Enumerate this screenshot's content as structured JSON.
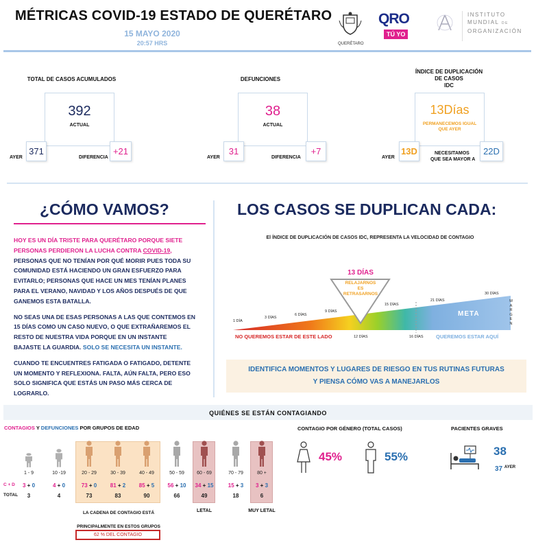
{
  "header": {
    "title": "MÉTRICAS COVID-19 ESTADO DE QUERÉTARO",
    "date": "15 MAYO 2020",
    "time": "20:57 HRS",
    "logo_queretaro": "QUERÉTARO",
    "logo_qro": "QRO",
    "logo_tuyo": "TÚ YO",
    "institute_line1": "INSTITUTO",
    "institute_line2": "MUNDIAL",
    "institute_de": "DE",
    "institute_line3": "ORGANIZACIÓN"
  },
  "metrics": {
    "casos": {
      "label": "TOTAL DE CASOS ACUMULADOS",
      "actual": "392",
      "actual_label": "ACTUAL",
      "ayer": "371",
      "ayer_label": "AYER",
      "diferencia": "+21",
      "diferencia_label": "DIFERENCIA"
    },
    "defunciones": {
      "label": "DEFUNCIONES",
      "actual": "38",
      "actual_label": "ACTUAL",
      "ayer": "31",
      "ayer_label": "AYER",
      "diferencia": "+7",
      "diferencia_label": "DIFERENCIA"
    },
    "idc": {
      "label_line1": "ÍNDICE DE DUPLICACIÓN",
      "label_line2": "DE CASOS",
      "label_line3": "IDC",
      "actual": "13Días",
      "note_line1": "PERMANECEMOS IGUAL",
      "note_line2": "QUE AYER",
      "ayer": "13D",
      "ayer_label": "AYER",
      "need_line1": "NECESITAMOS",
      "need_line2": "QUE SEA MAYOR A",
      "target": "22D"
    }
  },
  "como_vamos": {
    "title": "¿CÓMO VAMOS?",
    "p1_mag1": "HOY ES UN DÍA TRISTE PARA QUERÉTARO PORQUE SIETE",
    "p1_mag2": "PERSONAS PERDIERON LA LUCHA CONTRA ",
    "p1_covid": "COVID-19",
    "p1_l3": "PERSONAS QUE NO TENÍAN POR QUÉ  MORIR PUES TODA SU",
    "p1_l4": "COMUNIDAD ESTÁ HACIENDO UN GRAN ESFUERZO PARA",
    "p1_l5": "EVITARLO; PERSONAS QUE HACE UN MES TENÍAN PLANES",
    "p1_l6": "PARA EL VERANO, NAVIDAD Y LOS AÑOS DESPUÉS DE QUE",
    "p1_l7": "GANEMOS ESTA BATALLA.",
    "p2_l1": "NO SEAS UNA DE ESAS PERSONAS A LAS QUE CONTEMOS EN",
    "p2_l2": "15 DÍAS COMO UN CASO NUEVO, O QUE EXTRAÑAREMOS EL",
    "p2_l3": "RESTO DE NUESTRA VIDA PORQUE EN UN INSTANTE",
    "p2_l4a": "BAJASTE LA GUARDIA. ",
    "p2_l4b": "SOLO SE NECESITA UN INSTANTE.",
    "p3_l1": "CUANDO TE ENCUENTRES FATIGADA O FATIGADO, DETENTE",
    "p3_l2": "UN MOMENTO Y REFLEXIONA. FALTA, AÚN FALTA, PERO ESO",
    "p3_l3": "SOLO SIGNIFICA QUE ESTÁS UN PASO MÁS CERCA DE",
    "p3_l4": "LOGRARLO."
  },
  "duplican": {
    "title": "LOS CASOS SE DUPLICAN CADA:",
    "subtitle": "El ÍNDICE DE DUPLICACIÓN DE CASOS IDC, REPRESENTA LA VELOCIDAD DE CONTAGIO",
    "current_days": "13 DÍAS",
    "triangle_l1": "RELAJARNOS",
    "triangle_l2": "ES",
    "triangle_l3": "RETRASARNOS",
    "scale_labels": [
      "1 DÍA",
      "3 DÍAS",
      "6 DÍAS",
      "9 DÍAS",
      "15 DÍAS",
      "21 DÍAS",
      "30 DÍAS"
    ],
    "mark_12": "12 DÍAS",
    "mark_16": "16 DÍAS",
    "meta": "META",
    "margen": "MARGEN",
    "no_queremos": "NO QUEREMOS ESTAR DE ESTE LADO",
    "queremos": "QUEREMOS ESTAR AQUÍ",
    "banner_l1": "IDENTIFICA MOMENTOS Y LUGARES DE RIESGO EN TUS RUTINAS FUTURAS",
    "banner_l2": "Y PIENSA CÓMO VAS A MANEJARLOS"
  },
  "contagiando": {
    "title": "QUIÉNES SE ESTÁN CONTAGIANDO",
    "legend_contagios": "CONTAGIOS",
    "legend_y": " Y ",
    "legend_defunciones": "DEFUNCIONES",
    "legend_rest": " POR GRUPOS DE EDAD",
    "cd_label": "C + D",
    "total_label": "TOTAL",
    "groups": [
      {
        "age": "1 - 9",
        "c": "3",
        "d": "0",
        "total": "3"
      },
      {
        "age": "10 -19",
        "c": "4",
        "d": "0",
        "total": "4"
      },
      {
        "age": "20 - 29",
        "c": "73",
        "d": "0",
        "total": "73"
      },
      {
        "age": "30 - 39",
        "c": "81",
        "d": "2",
        "total": "83"
      },
      {
        "age": "40 - 49",
        "c": "85",
        "d": "5",
        "total": "90"
      },
      {
        "age": "50 - 59",
        "c": "56",
        "d": "10",
        "total": "66"
      },
      {
        "age": "60 - 69",
        "c": "34",
        "d": "15",
        "total": "49"
      },
      {
        "age": "70 - 79",
        "c": "15",
        "d": "3",
        "total": "18"
      },
      {
        "age": "80 +",
        "c": "3",
        "d": "3",
        "total": "6"
      }
    ],
    "cadena_l1": "LA CADENA DE CONTAGIO ESTÁ",
    "cadena_l2": "PRINCIPALMENTE EN ESTOS GRUPOS",
    "pct_contagio": "62 % DEL CONTAGIO",
    "letal": "LETAL",
    "muy_letal": "MUY LETAL",
    "genero_title": "CONTAGIO POR GÉNERO (TOTAL CASOS)",
    "mujeres_pct": "45%",
    "hombres_pct": "55%",
    "graves_title": "PACIENTES GRAVES",
    "graves_hoy": "38",
    "graves_ayer": "37",
    "graves_ayer_label": "AYER"
  },
  "colors": {
    "navy": "#1b2a5e",
    "magenta": "#e0208e",
    "blue": "#2a6fb0",
    "orange": "#f0a020",
    "header_line": "#a9c7e8",
    "highlight_group": "#fbe2c4",
    "letal_group": "#e8c2c2"
  }
}
